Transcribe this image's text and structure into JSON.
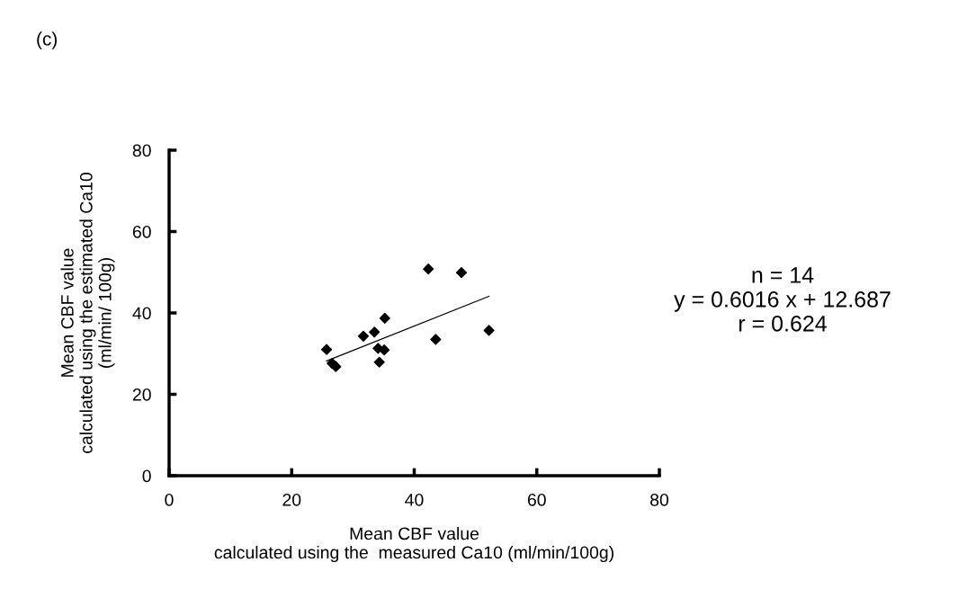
{
  "chart_data": {
    "type": "scatter",
    "title": "(c)",
    "xlabel": "Mean CBF value\ncalculated using the  measured Ca10 (ml/min/100g)",
    "ylabel": "Mean CBF value\ncalculated using the estimated Ca10\n(ml/min/ 100g)",
    "x": [
      25.7,
      26.6,
      27.2,
      31.7,
      33.5,
      34.1,
      35.1,
      34.5,
      34.3,
      35.2,
      42.3,
      43.5,
      47.7,
      52.2
    ],
    "series": [
      {
        "color": "#000000",
        "marker": "diamond",
        "values": [
          31.0,
          27.6,
          26.8,
          34.3,
          35.3,
          31.3,
          30.9,
          null,
          27.9,
          38.7,
          50.8,
          33.5,
          49.9,
          35.7
        ]
      },
      {
        "type": "line",
        "color": "#000000",
        "marker": "none",
        "x": [
          25.7,
          52.2
        ],
        "values": [
          28.2,
          44.1
        ]
      }
    ],
    "annotations": [
      "n = 14\ny = 0.6016 x + 12.687\nr = 0.624"
    ],
    "xlim": [
      0,
      80
    ],
    "ylim": [
      0,
      80
    ],
    "xticks": [
      0,
      20,
      40,
      60,
      80
    ],
    "yticks": [
      0,
      20,
      40,
      60,
      80
    ],
    "grid": false,
    "legend": false
  }
}
